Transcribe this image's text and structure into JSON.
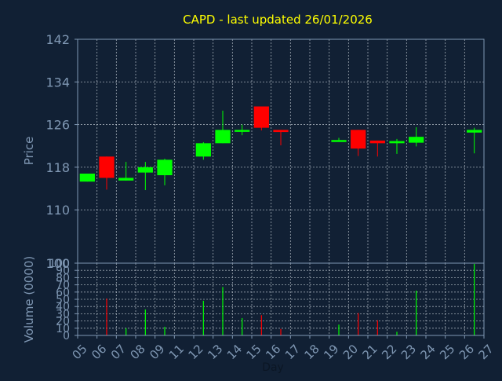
{
  "colors": {
    "background": "#112034",
    "axis": "#7f97b3",
    "text": "#7f97b3",
    "title": "#ffff00",
    "up": "#00ff00",
    "down": "#ff0000",
    "grid": "#d0d8e0"
  },
  "chart_data": [
    {
      "type": "candlestick",
      "title": "CAPD - last updated 26/01/2026",
      "ylabel": "Price",
      "ylim": [
        100,
        142
      ],
      "yticks": [
        "100",
        "110",
        "118",
        "126",
        "134",
        "142"
      ],
      "grid": true,
      "x_ticks": [
        "05",
        "06",
        "07",
        "08",
        "09",
        "11",
        "12",
        "13",
        "14",
        "15",
        "16",
        "17",
        "18",
        "19",
        "20",
        "21",
        "22",
        "23",
        "24",
        "25",
        "26",
        "27"
      ],
      "candles": [
        {
          "day": "05",
          "open": 115.3,
          "high": 116.8,
          "low": 115.3,
          "close": 116.8
        },
        {
          "day": "06",
          "open": 120.0,
          "high": 120.0,
          "low": 113.8,
          "close": 116.0
        },
        {
          "day": "07",
          "open": 115.5,
          "high": 119.0,
          "low": 115.5,
          "close": 116.0
        },
        {
          "day": "08",
          "open": 117.0,
          "high": 119.0,
          "low": 113.7,
          "close": 118.0
        },
        {
          "day": "09",
          "open": 116.5,
          "high": 119.6,
          "low": 114.6,
          "close": 119.4
        },
        {
          "day": "12",
          "open": 120.0,
          "high": 122.7,
          "low": 119.4,
          "close": 122.5
        },
        {
          "day": "13",
          "open": 122.5,
          "high": 128.6,
          "low": 122.5,
          "close": 125.0
        },
        {
          "day": "14",
          "open": 124.8,
          "high": 126.0,
          "low": 124.0,
          "close": 125.0
        },
        {
          "day": "15",
          "open": 129.4,
          "high": 129.4,
          "low": 124.9,
          "close": 125.4
        },
        {
          "day": "16",
          "open": 125.0,
          "high": 125.0,
          "low": 122.1,
          "close": 124.6
        },
        {
          "day": "19",
          "open": 122.8,
          "high": 123.5,
          "low": 122.8,
          "close": 123.1
        },
        {
          "day": "20",
          "open": 125.0,
          "high": 125.0,
          "low": 120.1,
          "close": 121.5
        },
        {
          "day": "21",
          "open": 123.0,
          "high": 123.0,
          "low": 120.0,
          "close": 122.5
        },
        {
          "day": "22",
          "open": 122.5,
          "high": 123.3,
          "low": 120.5,
          "close": 122.9
        },
        {
          "day": "23",
          "open": 122.6,
          "high": 125.5,
          "low": 121.9,
          "close": 123.7
        },
        {
          "day": "26",
          "open": 124.5,
          "high": 125.4,
          "low": 120.6,
          "close": 125.0
        }
      ]
    },
    {
      "type": "bar",
      "xlabel": "Day",
      "ylabel": "Volume (0000)",
      "ylim": [
        0,
        100
      ],
      "yticks": [
        "0",
        "10",
        "20",
        "30",
        "40",
        "50",
        "60",
        "70",
        "80",
        "90",
        "100"
      ],
      "grid": true,
      "bars": [
        {
          "day": "06",
          "value": 51,
          "color": "down"
        },
        {
          "day": "07",
          "value": 10,
          "color": "up"
        },
        {
          "day": "08",
          "value": 36,
          "color": "up"
        },
        {
          "day": "09",
          "value": 12,
          "color": "up"
        },
        {
          "day": "12",
          "value": 48,
          "color": "up"
        },
        {
          "day": "13",
          "value": 67,
          "color": "up"
        },
        {
          "day": "14",
          "value": 24,
          "color": "up"
        },
        {
          "day": "15",
          "value": 28,
          "color": "down"
        },
        {
          "day": "16",
          "value": 9,
          "color": "down"
        },
        {
          "day": "19",
          "value": 15,
          "color": "up"
        },
        {
          "day": "20",
          "value": 31,
          "color": "down"
        },
        {
          "day": "21",
          "value": 21,
          "color": "down"
        },
        {
          "day": "22",
          "value": 5,
          "color": "up"
        },
        {
          "day": "23",
          "value": 62,
          "color": "up"
        },
        {
          "day": "26",
          "value": 99,
          "color": "up"
        }
      ]
    }
  ]
}
